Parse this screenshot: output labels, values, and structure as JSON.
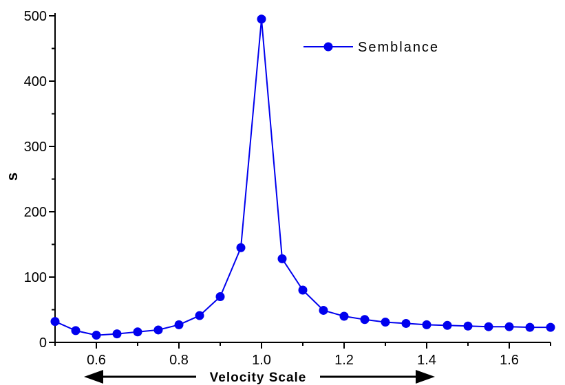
{
  "chart_data": {
    "type": "line",
    "xlabel": "Velocity Scale",
    "ylabel": "s",
    "xlim": [
      0.5,
      1.7
    ],
    "ylim": [
      0,
      500
    ],
    "xticks": [
      "0.6",
      "0.8",
      "1.0",
      "1.2",
      "1.4",
      "1.6"
    ],
    "yticks": [
      "0",
      "100",
      "200",
      "300",
      "400",
      "500"
    ],
    "grid": false,
    "legend_position": "top-right",
    "series": [
      {
        "name": "Semblance",
        "color": "#0000ee",
        "marker": "circle",
        "x": [
          0.5,
          0.55,
          0.6,
          0.65,
          0.7,
          0.75,
          0.8,
          0.85,
          0.9,
          0.95,
          1.0,
          1.05,
          1.1,
          1.15,
          1.2,
          1.25,
          1.3,
          1.35,
          1.4,
          1.45,
          1.5,
          1.55,
          1.6,
          1.65,
          1.7
        ],
        "y": [
          32,
          18,
          11,
          13,
          16,
          19,
          27,
          41,
          70,
          145,
          495,
          128,
          80,
          49,
          40,
          35,
          31,
          29,
          27,
          26,
          25,
          24,
          24,
          23,
          23
        ]
      }
    ]
  }
}
